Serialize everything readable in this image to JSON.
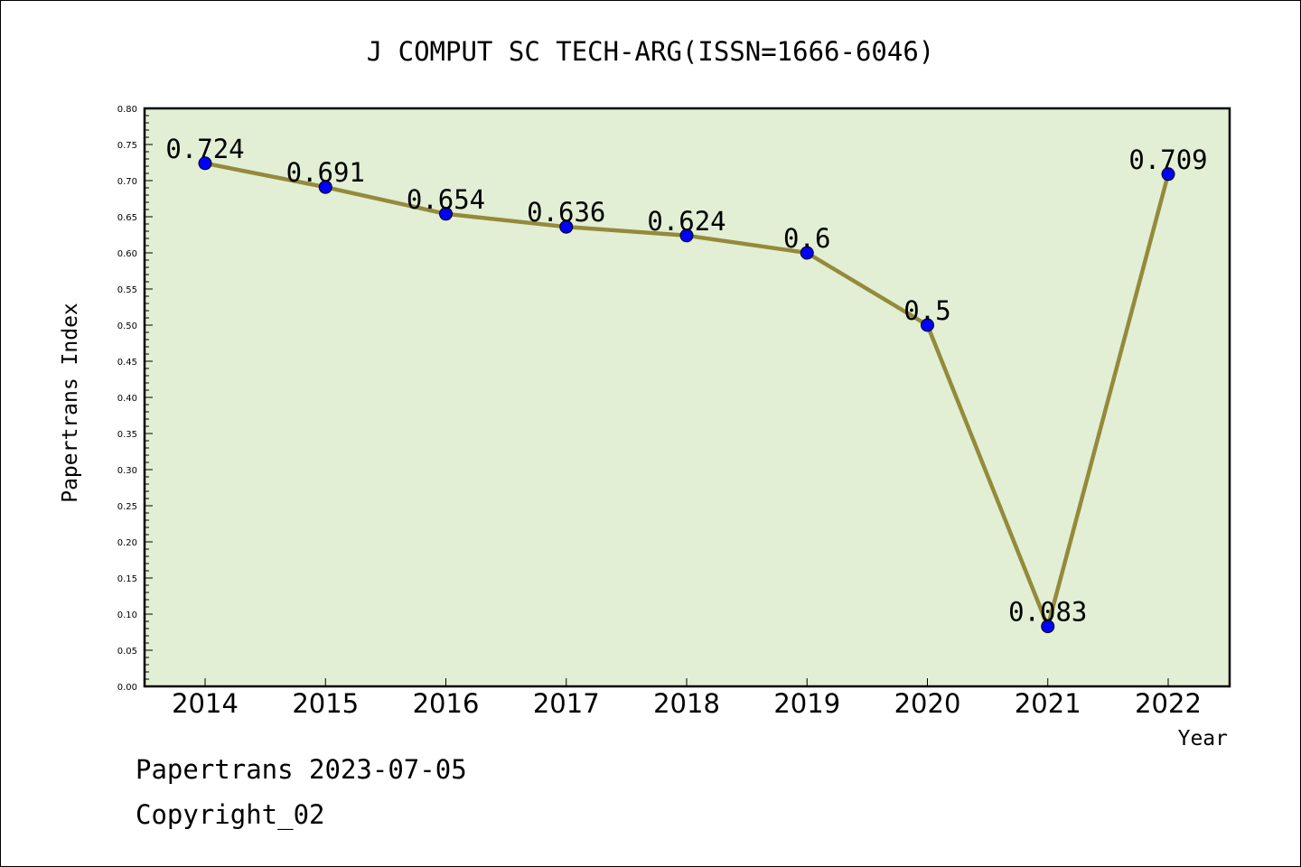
{
  "chart_data": {
    "type": "line",
    "title": "J COMPUT SC TECH-ARG(ISSN=1666-6046)",
    "xlabel": "Year",
    "ylabel": "Papertrans Index",
    "categories": [
      "2014",
      "2015",
      "2016",
      "2017",
      "2018",
      "2019",
      "2020",
      "2021",
      "2022"
    ],
    "values": [
      0.724,
      0.691,
      0.654,
      0.636,
      0.624,
      0.6,
      0.5,
      0.083,
      0.709
    ],
    "data_labels": [
      "0.724",
      "0.691",
      "0.654",
      "0.636",
      "0.624",
      "0.6",
      "0.5",
      "0.083",
      "0.709"
    ],
    "ylim": [
      0,
      0.8
    ],
    "y_ticks": [
      "0.00",
      "0.05",
      "0.10",
      "0.15",
      "0.20",
      "0.25",
      "0.30",
      "0.35",
      "0.40",
      "0.45",
      "0.50",
      "0.55",
      "0.60",
      "0.65",
      "0.70",
      "0.75",
      "0.80"
    ],
    "grid": false,
    "colors": {
      "plot_background": "#e2efd5",
      "line": "#948a3a",
      "marker": "#0000ff"
    }
  },
  "footer": {
    "line1": "Papertrans 2023-07-05",
    "line2": "Copyright_02"
  }
}
